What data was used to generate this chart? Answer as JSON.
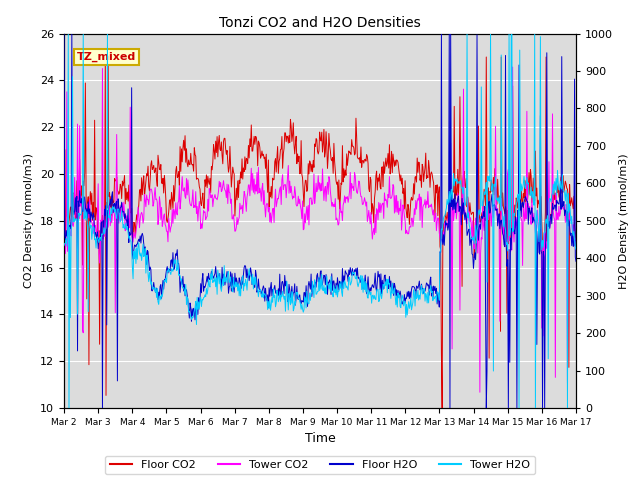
{
  "title": "Tonzi CO2 and H2O Densities",
  "xlabel": "Time",
  "ylabel_left": "CO2 Density (mmol/m3)",
  "ylabel_right": "H2O Density (mmol/m3)",
  "ylim_left": [
    10,
    26
  ],
  "ylim_right": [
    0,
    1000
  ],
  "yticks_left": [
    10,
    12,
    14,
    16,
    18,
    20,
    22,
    24,
    26
  ],
  "yticks_right": [
    0,
    100,
    200,
    300,
    400,
    500,
    600,
    700,
    800,
    900,
    1000
  ],
  "xtick_labels": [
    "Mar 2",
    "Mar 3",
    "Mar 4",
    "Mar 5",
    "Mar 6",
    "Mar 7",
    "Mar 8",
    "Mar 9",
    "Mar 10",
    "Mar 11",
    "Mar 12",
    "Mar 13",
    "Mar 14",
    "Mar 15",
    "Mar 16",
    "Mar 17"
  ],
  "annotation_text": "TZ_mixed",
  "annotation_color": "#cc0000",
  "annotation_bg": "#ffffcc",
  "annotation_border": "#ccaa00",
  "colors": {
    "floor_co2": "#dd0000",
    "tower_co2": "#ff00ff",
    "floor_h2o": "#0000cc",
    "tower_h2o": "#00ccff"
  },
  "legend_labels": [
    "Floor CO2",
    "Tower CO2",
    "Floor H2O",
    "Tower H2O"
  ],
  "fig_bg": "#ffffff",
  "plot_bg": "#dcdcdc",
  "grid_color": "#ffffff"
}
